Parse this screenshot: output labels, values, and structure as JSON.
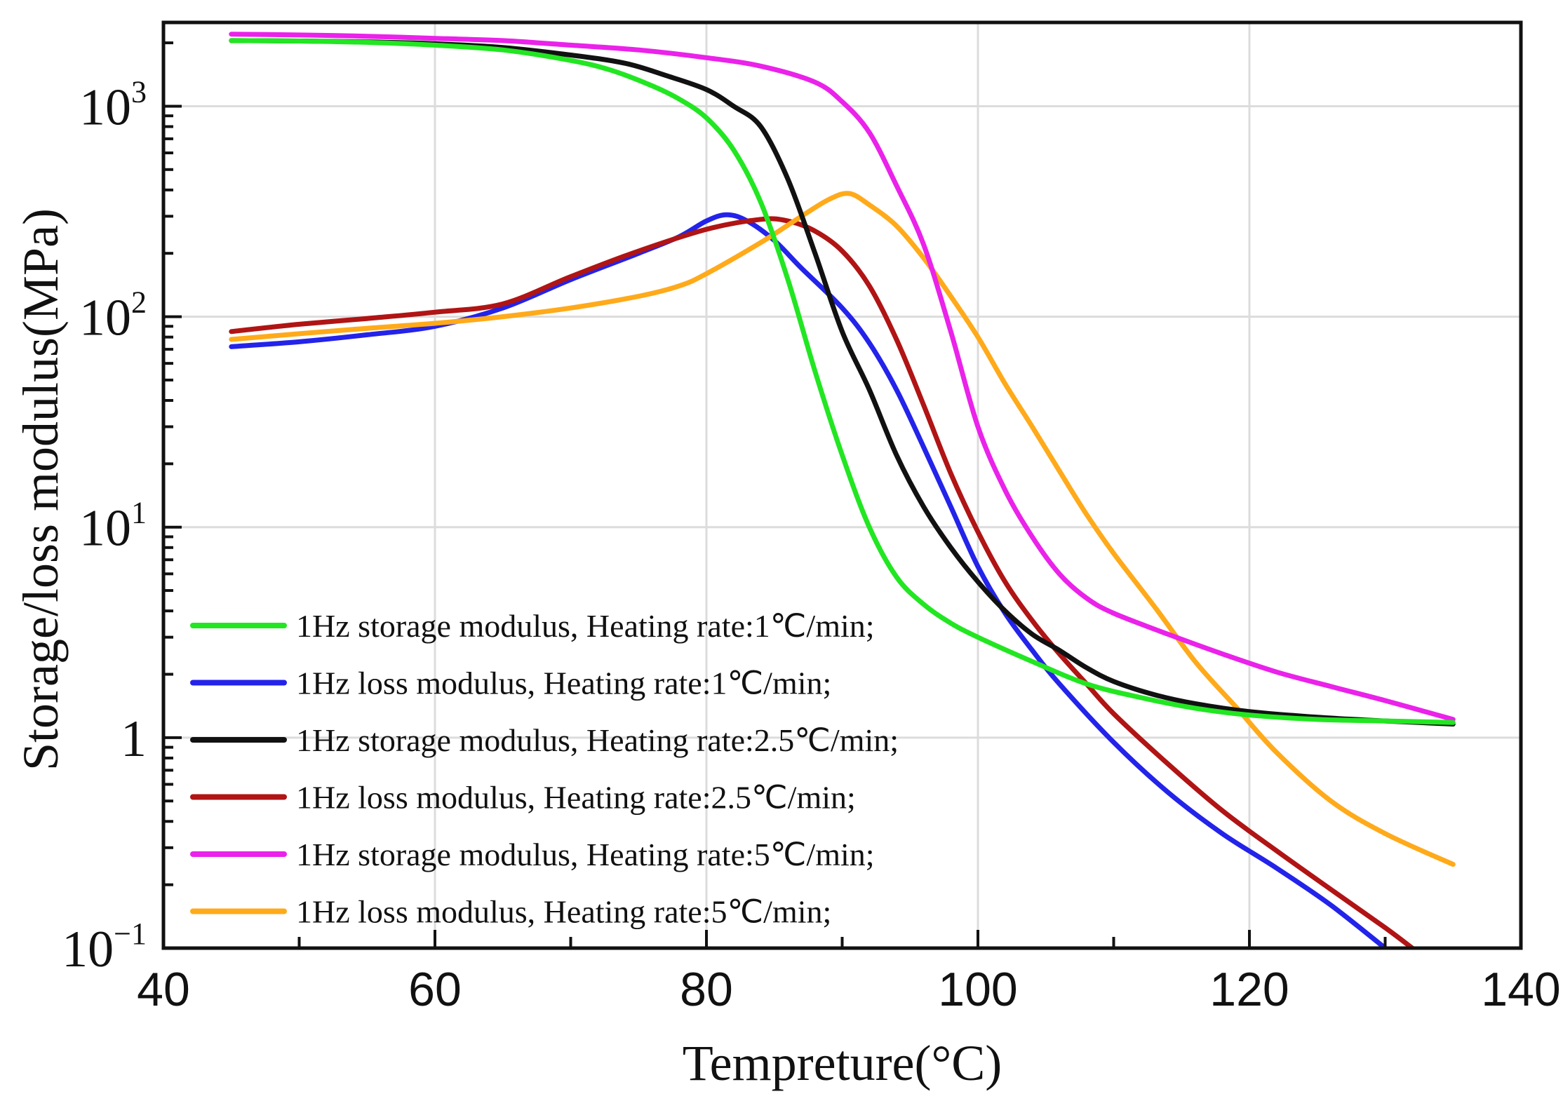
{
  "chart_data": {
    "type": "line",
    "title": "",
    "xlabel": "Tempreture(°C)",
    "ylabel": "Storage/loss modulus(MPa)",
    "xscale": "linear",
    "yscale": "log",
    "xlim": [
      40,
      140
    ],
    "ylim": [
      0.1,
      2500
    ],
    "grid": true,
    "legend_position": "lower-left",
    "x_ticks": [
      {
        "value": 40,
        "label": "40"
      },
      {
        "value": 60,
        "label": "60"
      },
      {
        "value": 80,
        "label": "80"
      },
      {
        "value": 100,
        "label": "100"
      },
      {
        "value": 120,
        "label": "120"
      },
      {
        "value": 140,
        "label": "140"
      }
    ],
    "y_ticks": [
      {
        "value": 0.1,
        "base": "10",
        "exp": "−1"
      },
      {
        "value": 1,
        "base": "1",
        "exp": ""
      },
      {
        "value": 10,
        "base": "10",
        "exp": "1"
      },
      {
        "value": 100,
        "base": "10",
        "exp": "2"
      },
      {
        "value": 1000,
        "base": "10",
        "exp": "3"
      }
    ],
    "series": [
      {
        "name": "1Hz storage modulus, Heating rate:1℃/min;",
        "color": "#22e622",
        "points": [
          [
            45,
            2050
          ],
          [
            50,
            2040
          ],
          [
            55,
            2010
          ],
          [
            60,
            1950
          ],
          [
            65,
            1850
          ],
          [
            70,
            1650
          ],
          [
            73,
            1480
          ],
          [
            76,
            1250
          ],
          [
            78,
            1080
          ],
          [
            80,
            880
          ],
          [
            82,
            620
          ],
          [
            84,
            350
          ],
          [
            86,
            150
          ],
          [
            88,
            55
          ],
          [
            90,
            22
          ],
          [
            92,
            10
          ],
          [
            94,
            5.8
          ],
          [
            96,
            4.3
          ],
          [
            98,
            3.5
          ],
          [
            100,
            3.0
          ],
          [
            104,
            2.3
          ],
          [
            108,
            1.8
          ],
          [
            112,
            1.55
          ],
          [
            116,
            1.38
          ],
          [
            120,
            1.28
          ],
          [
            125,
            1.22
          ],
          [
            130,
            1.2
          ],
          [
            135,
            1.18
          ]
        ]
      },
      {
        "name": "1Hz loss modulus, Heating rate:1℃/min;",
        "color": "#2323ea",
        "points": [
          [
            45,
            72
          ],
          [
            50,
            76
          ],
          [
            55,
            82
          ],
          [
            60,
            90
          ],
          [
            65,
            110
          ],
          [
            70,
            150
          ],
          [
            75,
            200
          ],
          [
            78,
            240
          ],
          [
            80,
            285
          ],
          [
            81.5,
            305
          ],
          [
            83,
            285
          ],
          [
            85,
            230
          ],
          [
            87,
            170
          ],
          [
            90,
            110
          ],
          [
            92,
            75
          ],
          [
            94,
            45
          ],
          [
            96,
            24
          ],
          [
            98,
            12.5
          ],
          [
            100,
            6.5
          ],
          [
            102,
            3.9
          ],
          [
            104,
            2.6
          ],
          [
            106,
            1.8
          ],
          [
            110,
            0.95
          ],
          [
            114,
            0.55
          ],
          [
            118,
            0.35
          ],
          [
            122,
            0.24
          ],
          [
            126,
            0.16
          ],
          [
            130,
            0.1
          ]
        ]
      },
      {
        "name": "1Hz storage modulus, Heating rate:2.5℃/min;",
        "color": "#111111",
        "points": [
          [
            45,
            2050
          ],
          [
            50,
            2040
          ],
          [
            55,
            2020
          ],
          [
            60,
            1980
          ],
          [
            65,
            1900
          ],
          [
            70,
            1750
          ],
          [
            74,
            1600
          ],
          [
            77,
            1400
          ],
          [
            80,
            1200
          ],
          [
            82,
            1000
          ],
          [
            84,
            800
          ],
          [
            86,
            450
          ],
          [
            88,
            200
          ],
          [
            90,
            85
          ],
          [
            92,
            45
          ],
          [
            94,
            22
          ],
          [
            96,
            12.5
          ],
          [
            98,
            8
          ],
          [
            100,
            5.5
          ],
          [
            102,
            4
          ],
          [
            104,
            3.1
          ],
          [
            106,
            2.6
          ],
          [
            108,
            2.15
          ],
          [
            110,
            1.85
          ],
          [
            113,
            1.6
          ],
          [
            116,
            1.45
          ],
          [
            120,
            1.33
          ],
          [
            125,
            1.25
          ],
          [
            130,
            1.2
          ],
          [
            135,
            1.16
          ]
        ]
      },
      {
        "name": "1Hz loss modulus, Heating rate:2.5℃/min;",
        "color": "#b01414",
        "points": [
          [
            45,
            85
          ],
          [
            50,
            92
          ],
          [
            55,
            98
          ],
          [
            60,
            105
          ],
          [
            65,
            115
          ],
          [
            70,
            155
          ],
          [
            75,
            205
          ],
          [
            80,
            260
          ],
          [
            84,
            290
          ],
          [
            86,
            285
          ],
          [
            88,
            255
          ],
          [
            90,
            205
          ],
          [
            92,
            140
          ],
          [
            94,
            78
          ],
          [
            96,
            38
          ],
          [
            98,
            18
          ],
          [
            100,
            9.5
          ],
          [
            102,
            5.5
          ],
          [
            104,
            3.6
          ],
          [
            106,
            2.5
          ],
          [
            108,
            1.8
          ],
          [
            110,
            1.3
          ],
          [
            114,
            0.75
          ],
          [
            118,
            0.45
          ],
          [
            122,
            0.29
          ],
          [
            126,
            0.19
          ],
          [
            130,
            0.125
          ],
          [
            132,
            0.1
          ]
        ]
      },
      {
        "name": "1Hz storage modulus, Heating rate:5℃/min;",
        "color": "#ea22ea",
        "points": [
          [
            45,
            2200
          ],
          [
            50,
            2180
          ],
          [
            55,
            2150
          ],
          [
            60,
            2100
          ],
          [
            65,
            2050
          ],
          [
            70,
            1950
          ],
          [
            75,
            1850
          ],
          [
            80,
            1700
          ],
          [
            84,
            1550
          ],
          [
            88,
            1300
          ],
          [
            90,
            1050
          ],
          [
            92,
            750
          ],
          [
            94,
            420
          ],
          [
            96,
            220
          ],
          [
            98,
            85
          ],
          [
            100,
            30
          ],
          [
            102,
            15
          ],
          [
            104,
            9
          ],
          [
            106,
            6
          ],
          [
            108,
            4.6
          ],
          [
            110,
            3.9
          ],
          [
            114,
            3.1
          ],
          [
            118,
            2.5
          ],
          [
            122,
            2.05
          ],
          [
            126,
            1.75
          ],
          [
            130,
            1.5
          ],
          [
            135,
            1.22
          ]
        ]
      },
      {
        "name": "1Hz loss modulus, Heating rate:5℃/min;",
        "color": "#ffaa1a",
        "points": [
          [
            45,
            78
          ],
          [
            50,
            83
          ],
          [
            55,
            88
          ],
          [
            60,
            93
          ],
          [
            65,
            100
          ],
          [
            70,
            110
          ],
          [
            75,
            125
          ],
          [
            78,
            140
          ],
          [
            80,
            160
          ],
          [
            84,
            225
          ],
          [
            87,
            300
          ],
          [
            89,
            360
          ],
          [
            90.5,
            385
          ],
          [
            92,
            340
          ],
          [
            94,
            270
          ],
          [
            96,
            190
          ],
          [
            98,
            125
          ],
          [
            100,
            80
          ],
          [
            102,
            48
          ],
          [
            104,
            30
          ],
          [
            106,
            18.5
          ],
          [
            108,
            11.5
          ],
          [
            110,
            7.5
          ],
          [
            113,
            4.2
          ],
          [
            116,
            2.3
          ],
          [
            119,
            1.4
          ],
          [
            122,
            0.85
          ],
          [
            126,
            0.5
          ],
          [
            130,
            0.35
          ],
          [
            135,
            0.25
          ]
        ]
      }
    ]
  }
}
